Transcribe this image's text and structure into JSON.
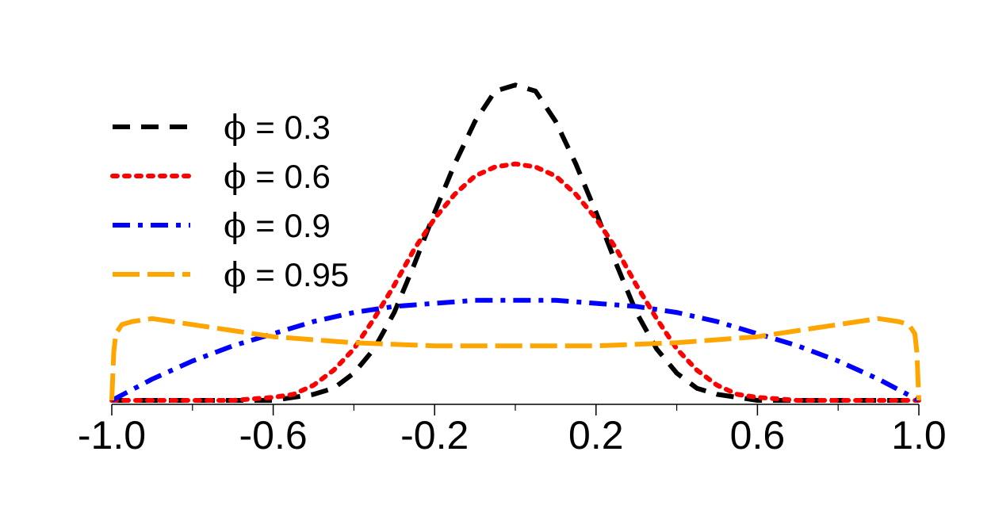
{
  "chart_data": {
    "type": "line",
    "xlim": [
      -1.0,
      1.0
    ],
    "ylim": [
      0,
      1.08
    ],
    "xticks": [
      -1.0,
      -0.6,
      -0.2,
      0.2,
      0.6,
      1.0
    ],
    "xtick_labels": [
      "-1.0",
      "-0.6",
      "-0.2",
      "0.2",
      "0.6",
      "1.0"
    ],
    "minor_xticks": [
      -0.8,
      -0.4,
      0.0,
      0.4,
      0.8
    ],
    "grid": false,
    "legend_position": "upper-left",
    "series": [
      {
        "name": "ϕ = 0.3",
        "legend_symbol": "ϕ",
        "legend_text": " = 0.3",
        "color": "#000000",
        "style": "dashed",
        "x": [
          -1.0,
          -0.9,
          -0.8,
          -0.7,
          -0.6,
          -0.5,
          -0.45,
          -0.4,
          -0.35,
          -0.3,
          -0.25,
          -0.2,
          -0.15,
          -0.1,
          -0.05,
          0.0,
          0.05,
          0.1,
          0.15,
          0.2,
          0.25,
          0.3,
          0.35,
          0.4,
          0.45,
          0.5,
          0.6,
          0.7,
          0.8,
          0.9,
          1.0
        ],
        "y": [
          0.0,
          0.0,
          0.0,
          0.0,
          0.0,
          0.02,
          0.04,
          0.09,
          0.17,
          0.29,
          0.45,
          0.62,
          0.78,
          0.92,
          1.02,
          1.04,
          1.02,
          0.92,
          0.78,
          0.62,
          0.45,
          0.29,
          0.17,
          0.09,
          0.04,
          0.02,
          0.0,
          0.0,
          0.0,
          0.0,
          0.0
        ]
      },
      {
        "name": "ϕ = 0.6",
        "legend_symbol": "ϕ",
        "legend_text": " = 0.6",
        "color": "#ff0000",
        "style": "dotted",
        "x": [
          -1.0,
          -0.9,
          -0.8,
          -0.7,
          -0.6,
          -0.55,
          -0.5,
          -0.45,
          -0.4,
          -0.35,
          -0.3,
          -0.25,
          -0.2,
          -0.15,
          -0.1,
          -0.05,
          0.0,
          0.05,
          0.1,
          0.15,
          0.2,
          0.25,
          0.3,
          0.35,
          0.4,
          0.45,
          0.5,
          0.55,
          0.6,
          0.7,
          0.8,
          0.9,
          1.0
        ],
        "y": [
          0.0,
          0.0,
          0.0,
          0.0,
          0.01,
          0.02,
          0.05,
          0.1,
          0.17,
          0.27,
          0.38,
          0.5,
          0.6,
          0.68,
          0.74,
          0.77,
          0.78,
          0.77,
          0.74,
          0.68,
          0.6,
          0.5,
          0.38,
          0.27,
          0.17,
          0.1,
          0.05,
          0.02,
          0.01,
          0.0,
          0.0,
          0.0,
          0.0
        ]
      },
      {
        "name": "ϕ = 0.9",
        "legend_symbol": "ϕ",
        "legend_text": " = 0.9",
        "color": "#0000ff",
        "style": "dashdot",
        "x": [
          -1.0,
          -0.9,
          -0.8,
          -0.7,
          -0.6,
          -0.5,
          -0.4,
          -0.3,
          -0.2,
          -0.1,
          0.0,
          0.1,
          0.2,
          0.3,
          0.4,
          0.5,
          0.6,
          0.7,
          0.8,
          0.9,
          1.0
        ],
        "y": [
          0.0,
          0.07,
          0.13,
          0.18,
          0.22,
          0.26,
          0.29,
          0.31,
          0.32,
          0.33,
          0.33,
          0.33,
          0.32,
          0.31,
          0.29,
          0.26,
          0.22,
          0.18,
          0.13,
          0.07,
          0.0
        ]
      },
      {
        "name": "ϕ = 0.95",
        "legend_symbol": "ϕ",
        "legend_text": " = 0.95",
        "color": "#ffa500",
        "style": "longdash",
        "x": [
          -1.0,
          -0.995,
          -0.99,
          -0.975,
          -0.95,
          -0.9,
          -0.8,
          -0.7,
          -0.6,
          -0.5,
          -0.4,
          -0.3,
          -0.2,
          -0.1,
          0.0,
          0.1,
          0.2,
          0.3,
          0.4,
          0.5,
          0.6,
          0.7,
          0.8,
          0.9,
          0.95,
          0.975,
          0.99,
          0.995,
          1.0
        ],
        "y": [
          0.0,
          0.16,
          0.22,
          0.25,
          0.26,
          0.27,
          0.25,
          0.23,
          0.21,
          0.2,
          0.19,
          0.185,
          0.18,
          0.18,
          0.18,
          0.18,
          0.18,
          0.185,
          0.19,
          0.2,
          0.21,
          0.23,
          0.25,
          0.27,
          0.26,
          0.25,
          0.22,
          0.16,
          0.0
        ]
      }
    ]
  }
}
